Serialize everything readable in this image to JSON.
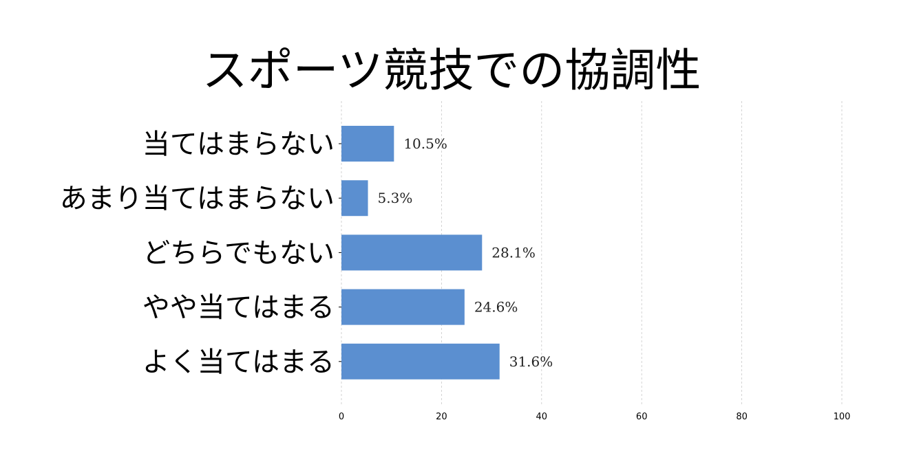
{
  "chart_data": {
    "type": "bar",
    "orientation": "horizontal",
    "title": "スポーツ競技での協調性",
    "categories": [
      "当てはまらない",
      "あまり当てはまらない",
      "どちらでもない",
      "やや当てはまる",
      "よく当てはまる"
    ],
    "values": [
      10.5,
      5.3,
      28.1,
      24.6,
      31.6
    ],
    "value_labels": [
      "10.5%",
      "5.3%",
      "28.1%",
      "24.6%",
      "31.6%"
    ],
    "xlim": [
      0,
      100
    ],
    "x_ticks": [
      0,
      20,
      40,
      60,
      80,
      100
    ],
    "grid": true,
    "bar_color": "#5b8fd0"
  }
}
